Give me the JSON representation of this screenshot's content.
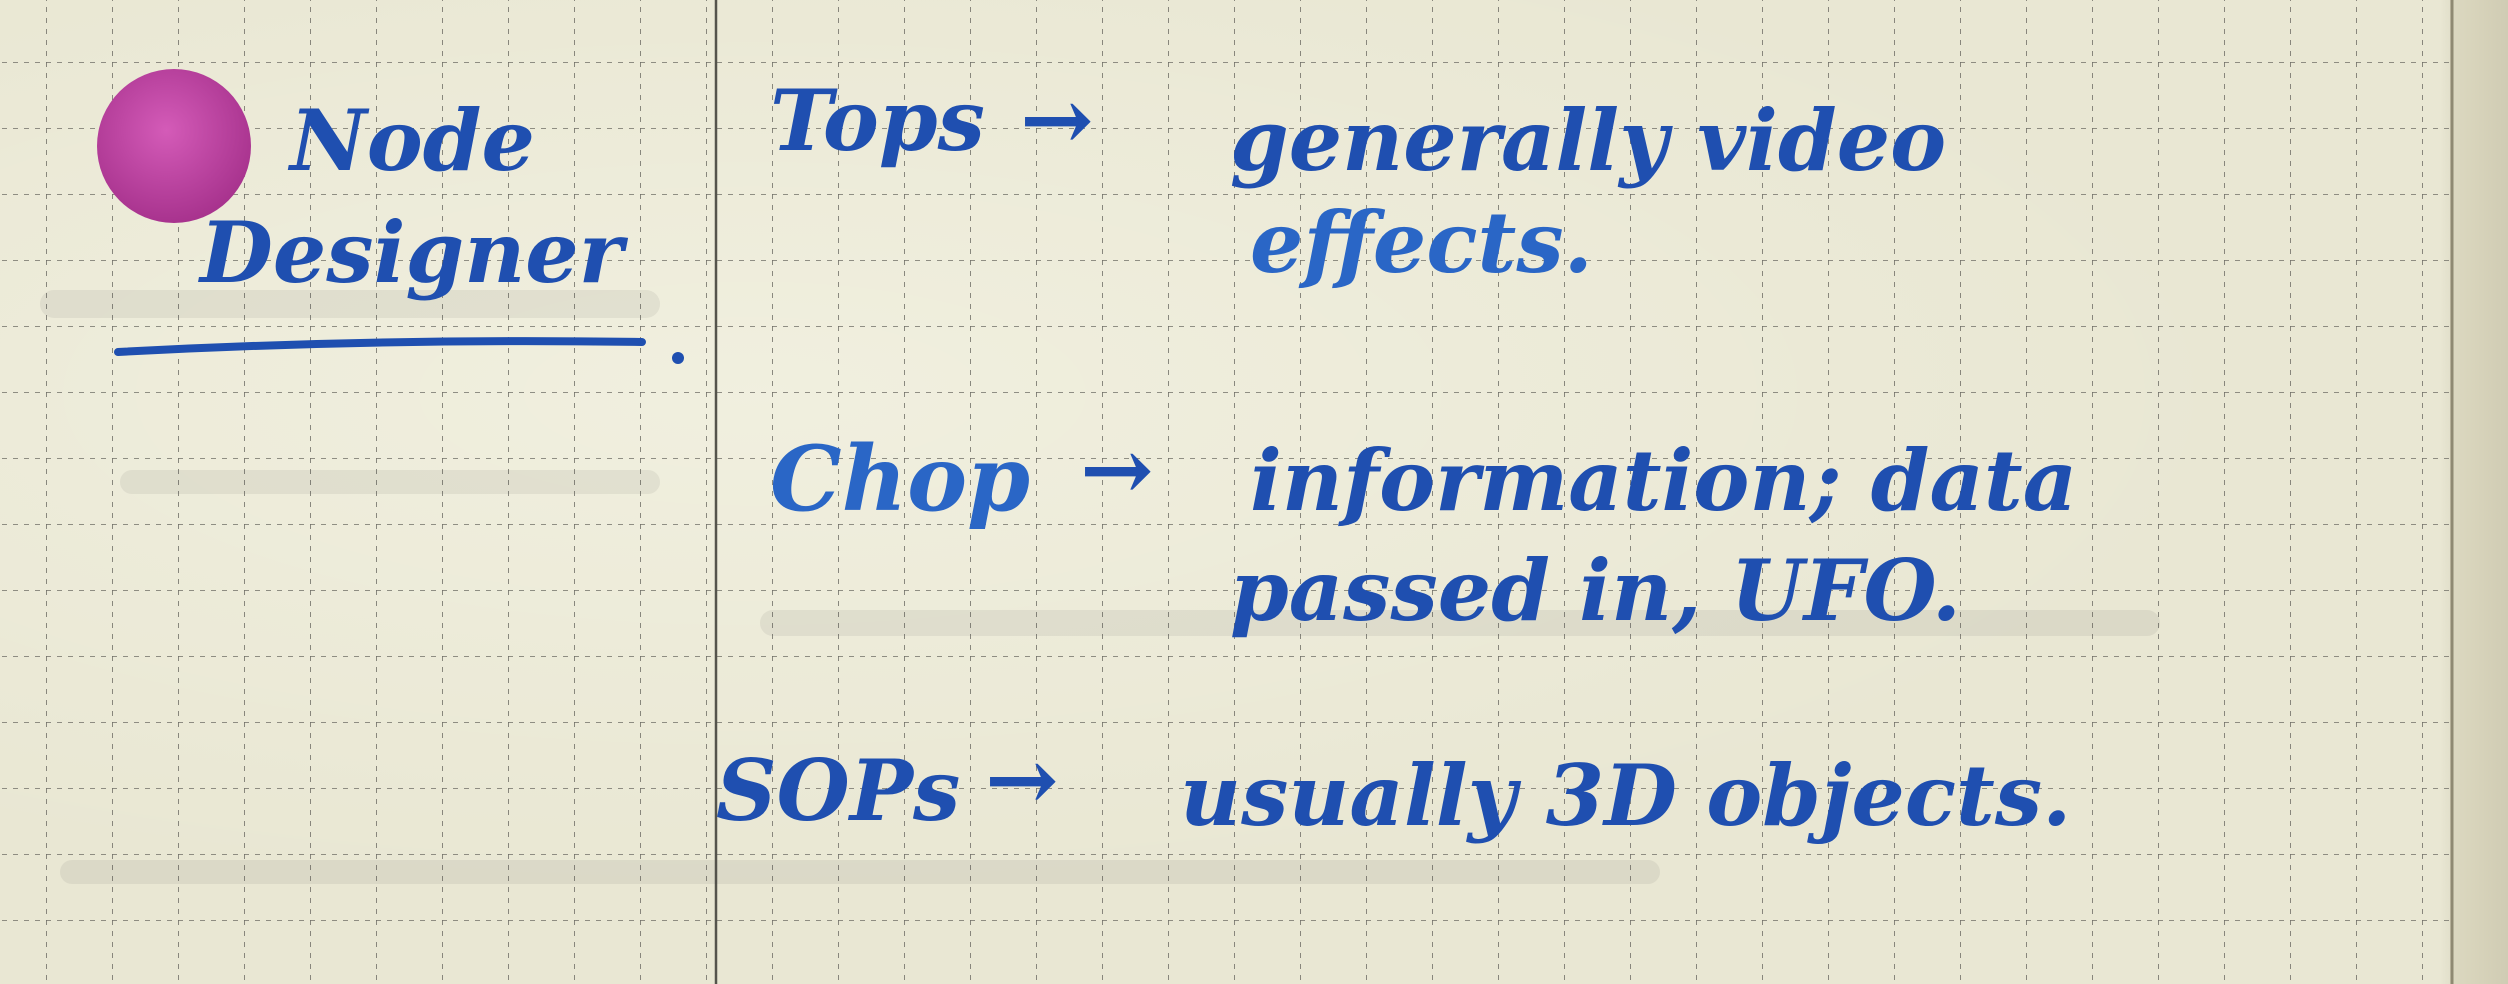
{
  "heading": {
    "line1": "Node",
    "line2": "Designer"
  },
  "notes": [
    {
      "term": "Tops",
      "arrow": "→",
      "line1": "generally video",
      "line2": "effects."
    },
    {
      "term": "Chop",
      "arrow": "→",
      "line1": "information; data",
      "line2": "passed in, UFO."
    },
    {
      "term": "SOPs",
      "arrow": "→",
      "line1": "usually 3D objects.",
      "line2": ""
    }
  ],
  "colors": {
    "paper": "#e9e7d3",
    "grid": "#6f6e66",
    "ink": "#1f4fb0",
    "sticker": "#c03fa4"
  },
  "icons": {
    "sticker": "magenta-circle-sticker"
  }
}
